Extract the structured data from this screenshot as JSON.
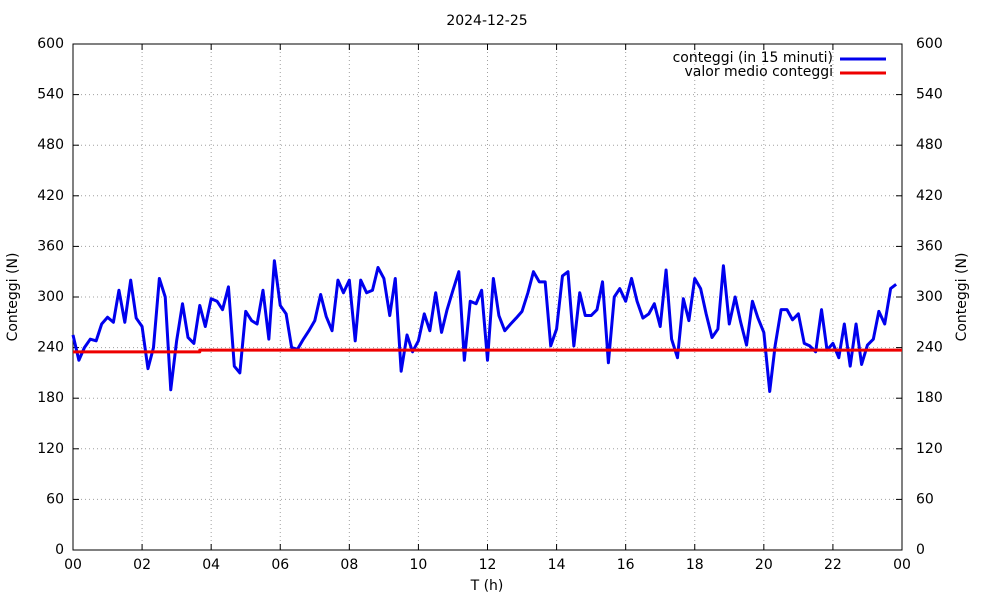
{
  "chart_data": {
    "type": "line",
    "title": "2024-12-25",
    "xlabel": "T (h)",
    "ylabel": "Conteggi (N)",
    "y2label": "Conteggi (N)",
    "xlim": [
      0,
      24
    ],
    "xticks": [
      {
        "value": 0,
        "label": "00"
      },
      {
        "value": 2,
        "label": "02"
      },
      {
        "value": 4,
        "label": "04"
      },
      {
        "value": 6,
        "label": "06"
      },
      {
        "value": 8,
        "label": "08"
      },
      10,
      12,
      14,
      16,
      18,
      20,
      22,
      {
        "value": 24,
        "label": "00"
      }
    ],
    "ylim": [
      0,
      600
    ],
    "yticks": [
      0,
      60,
      120,
      180,
      240,
      300,
      360,
      420,
      480,
      540,
      600
    ],
    "y2lim": [
      0,
      600
    ],
    "y2ticks": [
      0,
      60,
      120,
      180,
      240,
      300,
      360,
      420,
      480,
      540,
      600
    ],
    "grid": true,
    "legend": "top-right",
    "series": [
      {
        "name": "conteggi (in 15 minuti)",
        "color": "#0000ee",
        "x": [
          0,
          0.17,
          0.33,
          0.5,
          0.67,
          0.83,
          1,
          1.17,
          1.33,
          1.5,
          1.67,
          1.83,
          2,
          2.17,
          2.33,
          2.5,
          2.67,
          2.83,
          3,
          3.17,
          3.33,
          3.5,
          3.67,
          3.83,
          4,
          4.17,
          4.33,
          4.5,
          4.67,
          4.83,
          5,
          5.17,
          5.33,
          5.5,
          5.67,
          5.83,
          6,
          6.17,
          6.33,
          6.5,
          6.67,
          6.83,
          7,
          7.17,
          7.33,
          7.5,
          7.67,
          7.83,
          8,
          8.17,
          8.33,
          8.5,
          8.67,
          8.83,
          9,
          9.17,
          9.33,
          9.5,
          9.67,
          9.83,
          10,
          10.17,
          10.33,
          10.5,
          10.67,
          10.83,
          11,
          11.17,
          11.33,
          11.5,
          11.67,
          11.83,
          12,
          12.17,
          12.33,
          12.5,
          12.67,
          12.83,
          13,
          13.17,
          13.33,
          13.5,
          13.67,
          13.83,
          14,
          14.17,
          14.33,
          14.5,
          14.67,
          14.83,
          15,
          15.17,
          15.33,
          15.5,
          15.67,
          15.83,
          16,
          16.17,
          16.33,
          16.5,
          16.67,
          16.83,
          17,
          17.17,
          17.33,
          17.5,
          17.67,
          17.83,
          18,
          18.17,
          18.33,
          18.5,
          18.67,
          18.83,
          19,
          19.17,
          19.33,
          19.5,
          19.67,
          19.83,
          20,
          20.17,
          20.33,
          20.5,
          20.67,
          20.83,
          21,
          21.17,
          21.33,
          21.5,
          21.67,
          21.83,
          22,
          22.17,
          22.33,
          22.5,
          22.67,
          22.83,
          23,
          23.17,
          23.33,
          23.5,
          23.67,
          23.83
        ],
        "values": [
          255,
          225,
          240,
          250,
          248,
          268,
          276,
          270,
          308,
          270,
          320,
          275,
          265,
          215,
          240,
          322,
          300,
          190,
          248,
          292,
          252,
          245,
          290,
          265,
          298,
          295,
          285,
          312,
          218,
          210,
          283,
          272,
          268,
          308,
          250,
          343,
          290,
          280,
          240,
          238,
          250,
          260,
          272,
          303,
          277,
          260,
          320,
          305,
          320,
          248,
          320,
          305,
          308,
          335,
          322,
          278,
          322,
          212,
          255,
          235,
          248,
          280,
          260,
          305,
          258,
          285,
          308,
          330,
          225,
          295,
          292,
          308,
          225,
          322,
          278,
          260,
          268,
          275,
          283,
          305,
          330,
          318,
          318,
          242,
          262,
          325,
          330,
          242,
          305,
          278,
          278,
          285,
          318,
          222,
          300,
          310,
          295,
          322,
          295,
          275,
          280,
          292,
          265,
          332,
          250,
          228,
          298,
          272,
          322,
          310,
          280,
          252,
          262,
          337,
          268,
          300,
          270,
          243,
          295,
          275,
          258,
          188,
          243,
          285,
          285,
          273,
          280,
          245,
          242,
          235,
          285,
          237,
          245,
          228,
          268,
          218,
          268,
          220,
          243,
          250,
          283,
          268,
          310,
          315
        ]
      },
      {
        "name": "valor medio conteggi",
        "color": "#ee0000",
        "x": [
          0,
          3.67,
          3.67,
          24
        ],
        "values": [
          235,
          235,
          237,
          237
        ]
      }
    ]
  }
}
